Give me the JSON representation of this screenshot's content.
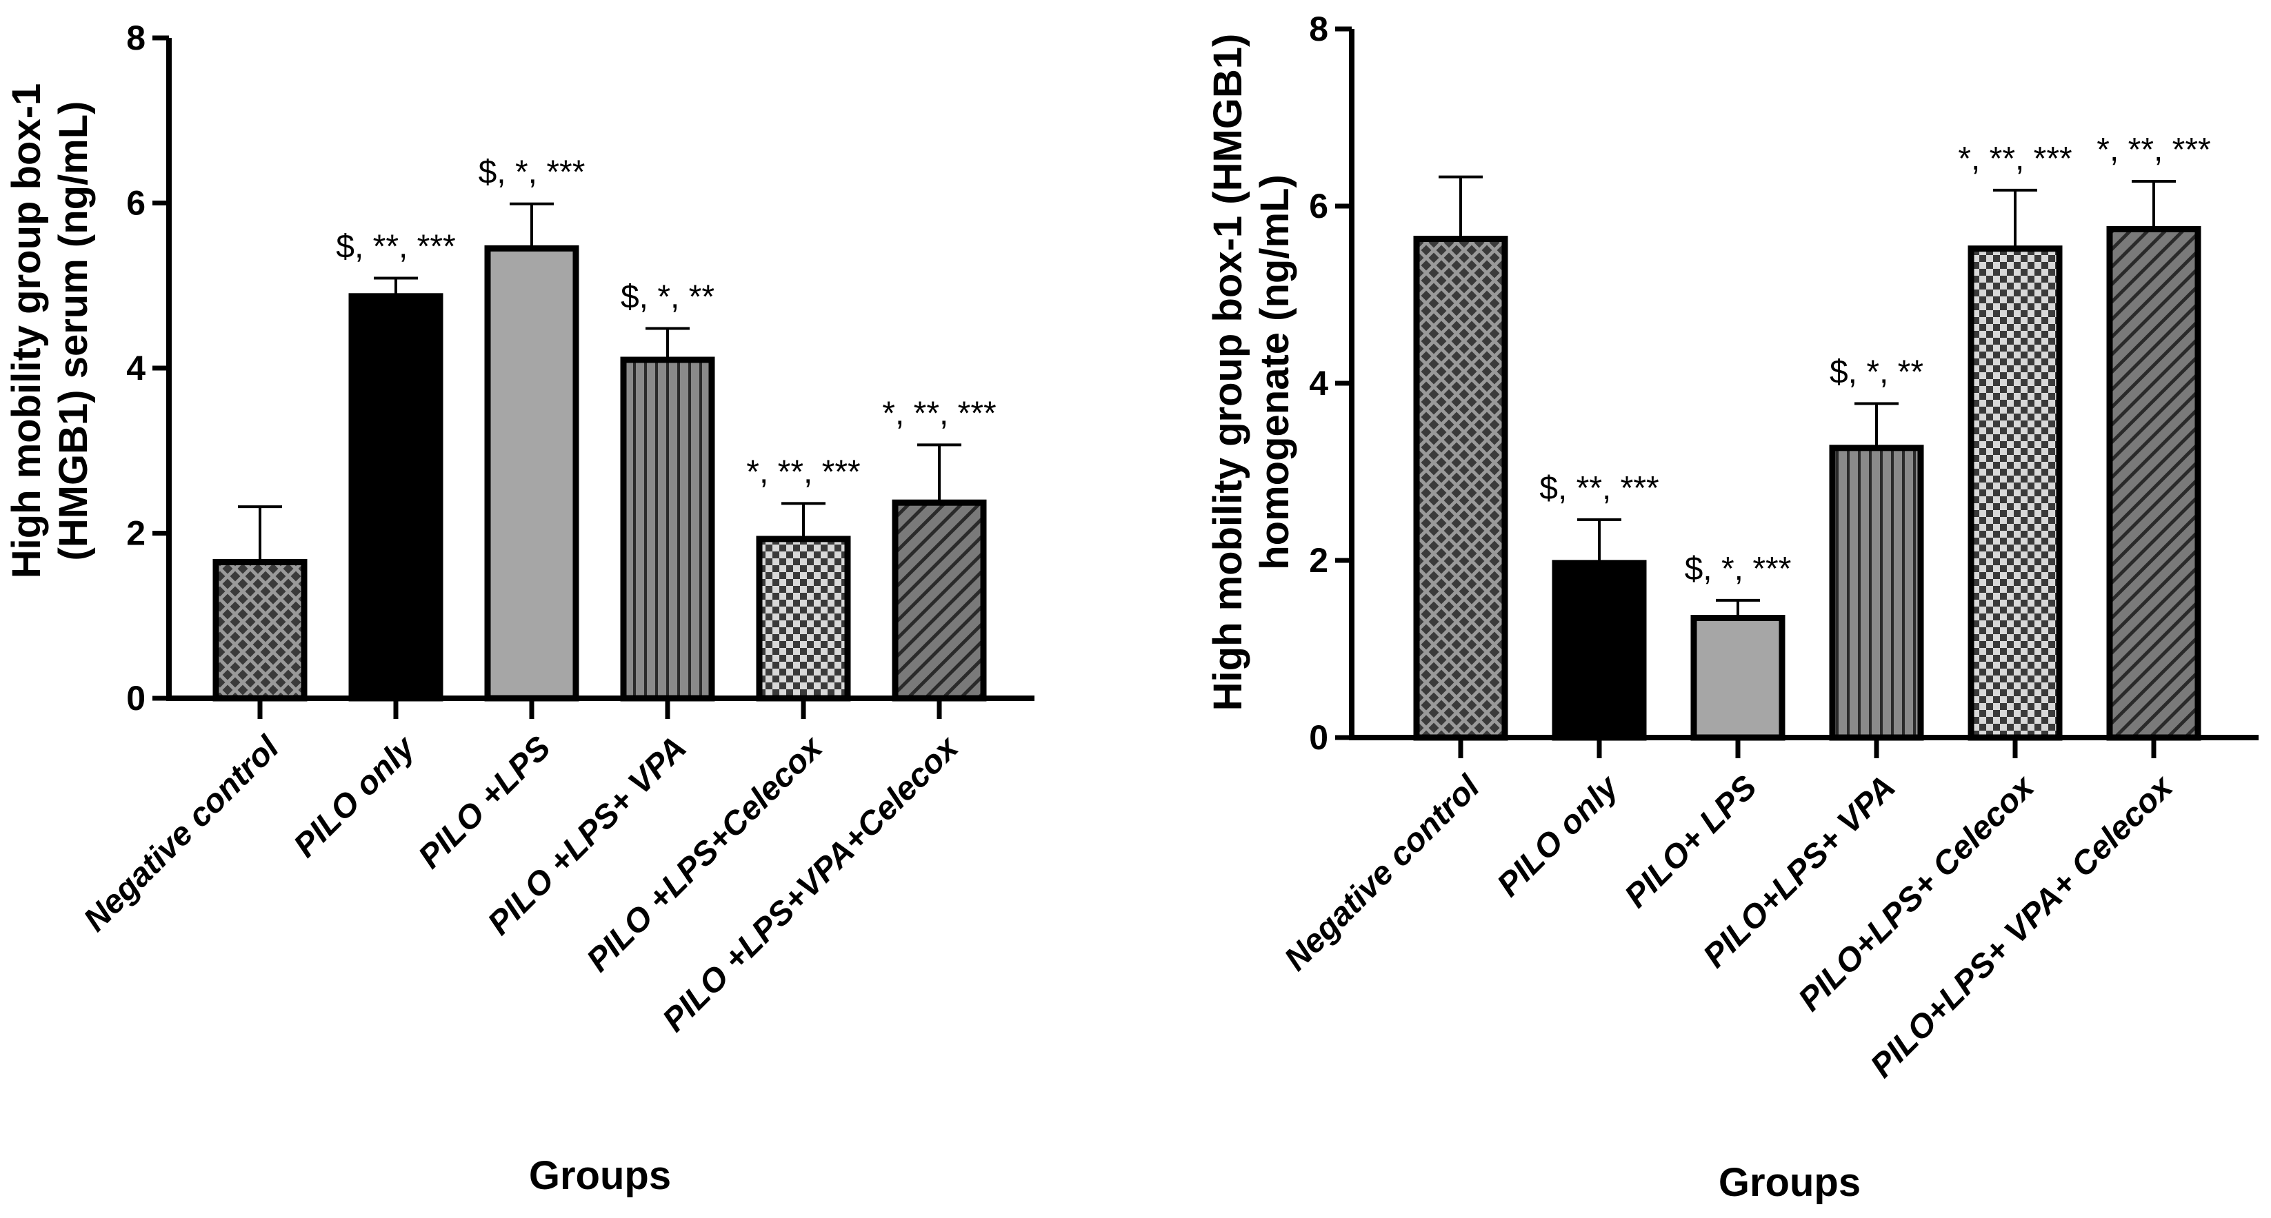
{
  "chart_data": [
    {
      "type": "bar",
      "xlabel": "Groups",
      "ylabel_lines": [
        "High mobility group box-1",
        "(HMGB1) serum (ng/mL)"
      ],
      "ylim": [
        0,
        8
      ],
      "yticks": [
        "0",
        "2",
        "4",
        "6",
        "8"
      ],
      "categories": [
        "Negative control",
        "PILO only",
        "PILO +LPS",
        "PILO +LPS+ VPA",
        "PILO +LPS+Celecox",
        "PILO +LPS+VPA+Celecox"
      ],
      "values": [
        1.65,
        4.87,
        5.45,
        4.1,
        1.93,
        2.37
      ],
      "errors": [
        0.67,
        0.22,
        0.54,
        0.38,
        0.43,
        0.7
      ],
      "significance": [
        "",
        "$, **, ***",
        "$, *, ***",
        "$, *, **",
        "*, **, ***",
        "*, **, ***"
      ],
      "patterns": [
        "diamond-check",
        "solid-black",
        "solid-gray",
        "vertical-lines",
        "checker",
        "diagonal-lines"
      ]
    },
    {
      "type": "bar",
      "xlabel": "Groups",
      "ylabel_lines": [
        "High mobility group box-1 (HMGB1)",
        "homogenate (ng/mL)"
      ],
      "ylim": [
        0,
        8
      ],
      "yticks": [
        "0",
        "2",
        "4",
        "6",
        "8"
      ],
      "categories": [
        "Negative control",
        "PILO only",
        "PILO+ LPS",
        "PILO+LPS+ VPA",
        "PILO+LPS+ Celecox",
        "PILO+LPS+ VPA+ Celecox"
      ],
      "values": [
        5.63,
        1.97,
        1.35,
        3.27,
        5.52,
        5.74
      ],
      "errors": [
        0.7,
        0.49,
        0.2,
        0.5,
        0.66,
        0.54
      ],
      "significance": [
        "",
        "$, **, ***",
        "$, *, ***",
        "$, *, **",
        "*, **, ***",
        "*, **, ***"
      ],
      "patterns": [
        "diamond-check",
        "solid-black",
        "solid-gray",
        "vertical-lines",
        "checker",
        "diagonal-lines"
      ]
    }
  ],
  "colors": {
    "axis": "#000000",
    "solid_black": "#000000",
    "solid_gray": "#a6a6a6",
    "dark_fill": "#3a3a3a",
    "mid_fill": "#7a7a7a",
    "light_fill": "#d8d8d8"
  }
}
